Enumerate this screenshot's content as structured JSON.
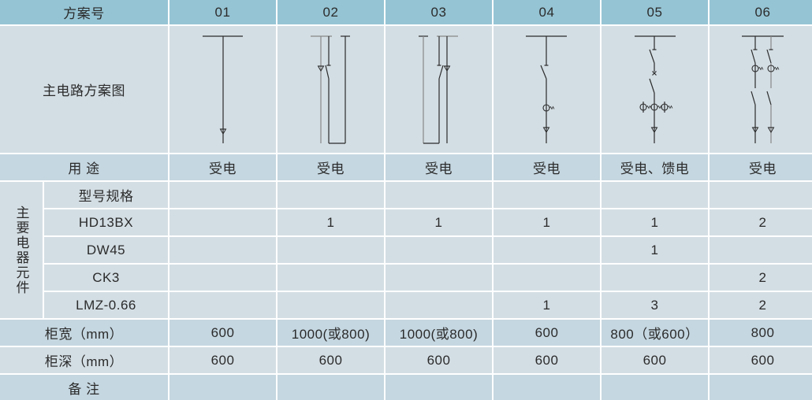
{
  "colors": {
    "header": "#95c4d4",
    "row_dark": "#c5d7e1",
    "row_light": "#d3dee4",
    "text": "#2b2b2b"
  },
  "header": {
    "label": "方案号",
    "schemes": [
      "01",
      "02",
      "03",
      "04",
      "05",
      "06"
    ]
  },
  "diagram_row": {
    "label": "主电路方案图"
  },
  "usage": {
    "label": "用  途",
    "values": [
      "受电",
      "受电",
      "受电",
      "受电",
      "受电、馈电",
      "受电"
    ]
  },
  "components": {
    "group_label": "主要电器元件",
    "rows": [
      {
        "label": "型号规格",
        "values": [
          "",
          "",
          "",
          "",
          "",
          ""
        ]
      },
      {
        "label": "HD13BX",
        "values": [
          "",
          "1",
          "1",
          "1",
          "1",
          "2"
        ]
      },
      {
        "label": "DW45",
        "values": [
          "",
          "",
          "",
          "",
          "1",
          ""
        ]
      },
      {
        "label": "CK3",
        "values": [
          "",
          "",
          "",
          "",
          "",
          "2"
        ]
      },
      {
        "label": "LMZ-0.66",
        "values": [
          "",
          "",
          "",
          "1",
          "3",
          "2"
        ]
      }
    ]
  },
  "cabinet_width": {
    "label": "柜宽（mm）",
    "values": [
      "600",
      "1000(或800)",
      "1000(或800)",
      "600",
      "800（或600）",
      "800"
    ]
  },
  "cabinet_depth": {
    "label": "柜深（mm）",
    "values": [
      "600",
      "600",
      "600",
      "600",
      "600",
      "600"
    ]
  },
  "remarks": {
    "label": "备  注",
    "values": [
      "",
      "",
      "",
      "",
      "",
      ""
    ]
  }
}
